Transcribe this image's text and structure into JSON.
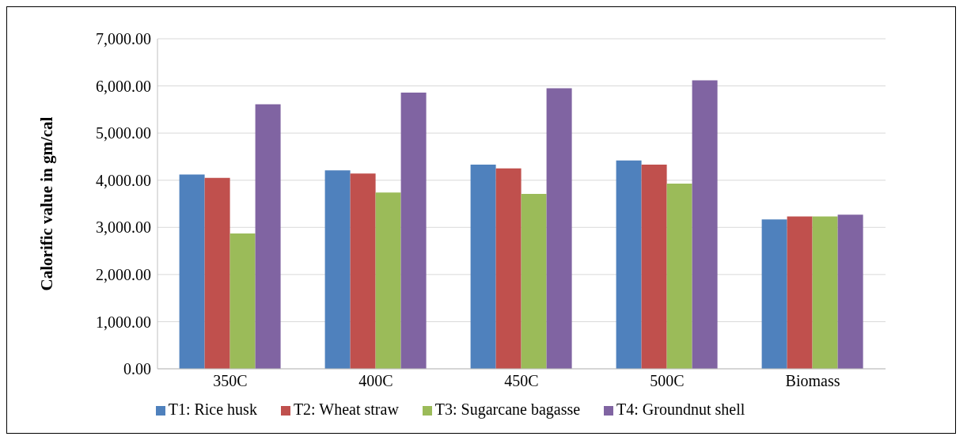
{
  "chart_data": {
    "type": "bar",
    "ylabel": "Calorific value in gm/cal",
    "categories": [
      "350C",
      "400C",
      "450C",
      "500C",
      "Biomass"
    ],
    "series": [
      {
        "name": "T1: Rice husk",
        "color": "#4f81bd",
        "values": [
          4120,
          4210,
          4330,
          4420,
          3170
        ]
      },
      {
        "name": "T2: Wheat straw",
        "color": "#c0504d",
        "values": [
          4050,
          4140,
          4250,
          4330,
          3230
        ]
      },
      {
        "name": "T3: Sugarcane bagasse",
        "color": "#9bbb59",
        "values": [
          2870,
          3740,
          3710,
          3930,
          3230
        ]
      },
      {
        "name": "T4: Groundnut shell",
        "color": "#8064a2",
        "values": [
          5610,
          5860,
          5950,
          6120,
          3270
        ]
      }
    ],
    "ylim": [
      0,
      7000
    ],
    "yticks": [
      {
        "value": 0,
        "label": "0.00"
      },
      {
        "value": 1000,
        "label": "1,000.00"
      },
      {
        "value": 2000,
        "label": "2,000.00"
      },
      {
        "value": 3000,
        "label": "3,000.00"
      },
      {
        "value": 4000,
        "label": "4,000.00"
      },
      {
        "value": 5000,
        "label": "5,000.00"
      },
      {
        "value": 6000,
        "label": "6,000.00"
      },
      {
        "value": 7000,
        "label": "7,000.00"
      }
    ],
    "grid": "y",
    "legend": "bottom"
  }
}
